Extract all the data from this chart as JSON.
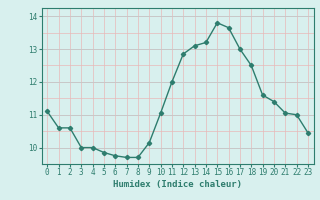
{
  "x": [
    0,
    1,
    2,
    3,
    4,
    5,
    6,
    7,
    8,
    9,
    10,
    11,
    12,
    13,
    14,
    15,
    16,
    17,
    18,
    19,
    20,
    21,
    22,
    23
  ],
  "y": [
    11.1,
    10.6,
    10.6,
    10.0,
    10.0,
    9.85,
    9.75,
    9.7,
    9.7,
    10.15,
    11.05,
    12.0,
    12.85,
    13.1,
    13.2,
    13.8,
    13.65,
    13.0,
    12.5,
    11.6,
    11.4,
    11.05,
    11.0,
    10.45
  ],
  "line_color": "#2e7d6e",
  "marker": "D",
  "marker_size": 2.2,
  "line_width": 1.0,
  "bg_color": "#d8f0ee",
  "xlabel": "Humidex (Indice chaleur)",
  "xlim": [
    -0.5,
    23.5
  ],
  "ylim": [
    9.5,
    14.25
  ],
  "yticks": [
    10,
    11,
    12,
    13,
    14
  ],
  "xticks": [
    0,
    1,
    2,
    3,
    4,
    5,
    6,
    7,
    8,
    9,
    10,
    11,
    12,
    13,
    14,
    15,
    16,
    17,
    18,
    19,
    20,
    21,
    22,
    23
  ],
  "tick_color": "#2e7d6e",
  "label_fontsize": 6.5,
  "tick_fontsize": 5.5,
  "grid_red_color": "#e8b8b8",
  "grid_major_color": "#c8c8c8"
}
